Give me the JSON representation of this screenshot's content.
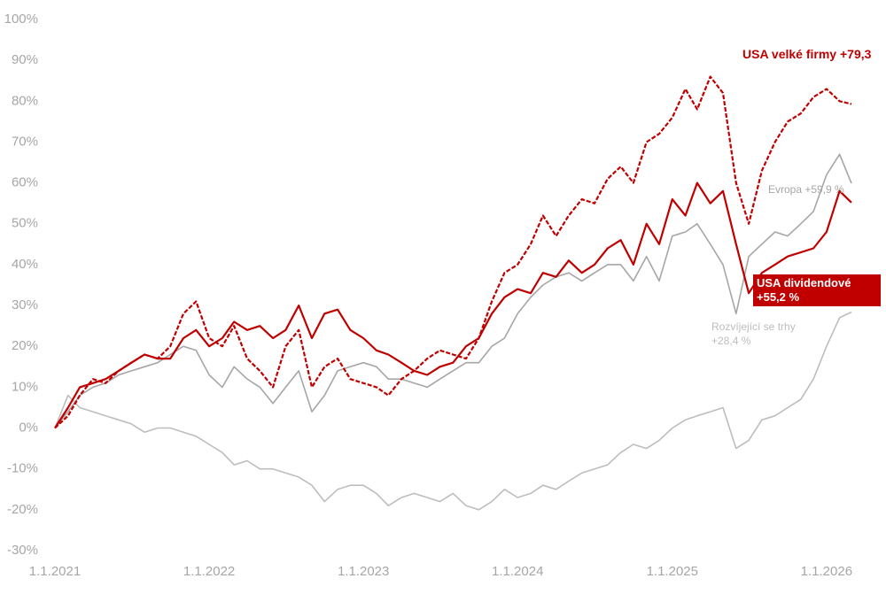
{
  "chart_data": {
    "type": "line",
    "x": [
      "2021-01-01",
      "2021-02-01",
      "2021-03-01",
      "2021-04-01",
      "2021-05-01",
      "2021-06-01",
      "2021-07-01",
      "2021-08-01",
      "2021-09-01",
      "2021-10-01",
      "2021-11-01",
      "2021-12-01",
      "2022-01-01",
      "2022-02-01",
      "2022-03-01",
      "2022-04-01",
      "2022-05-01",
      "2022-06-01",
      "2022-07-01",
      "2022-08-01",
      "2022-09-01",
      "2022-10-01",
      "2022-11-01",
      "2022-12-01",
      "2023-01-01",
      "2023-02-01",
      "2023-03-01",
      "2023-04-01",
      "2023-05-01",
      "2023-06-01",
      "2023-07-01",
      "2023-08-01",
      "2023-09-01",
      "2023-10-01",
      "2023-11-01",
      "2023-12-01",
      "2024-01-01",
      "2024-02-01",
      "2024-03-01",
      "2024-04-01",
      "2024-05-01",
      "2024-06-01",
      "2024-07-01",
      "2024-08-01",
      "2024-09-01",
      "2024-10-01",
      "2024-11-01",
      "2024-12-01",
      "2025-01-01",
      "2025-02-01",
      "2025-03-01",
      "2025-04-01",
      "2025-05-01",
      "2025-06-01",
      "2025-07-01",
      "2025-08-01",
      "2025-09-01",
      "2025-10-01",
      "2025-11-01",
      "2025-12-01",
      "2026-01-01",
      "2026-02-01",
      "2026-03-01"
    ],
    "series": [
      {
        "name": "Rozvíjející se trhy +28,4 %",
        "color": "#bdbdbd",
        "values": [
          0,
          8,
          5,
          4,
          3,
          2,
          1,
          -1,
          0,
          0,
          -1,
          -2,
          -4,
          -6,
          -9,
          -8,
          -10,
          -10,
          -11,
          -12,
          -14,
          -18,
          -15,
          -14,
          -14,
          -16,
          -19,
          -17,
          -16,
          -17,
          -18,
          -16,
          -19,
          -20,
          -18,
          -15,
          -17,
          -16,
          -14,
          -15,
          -13,
          -11,
          -10,
          -9,
          -6,
          -4,
          -5,
          -3,
          0,
          2,
          3,
          4,
          5,
          -5,
          -3,
          2,
          3,
          5,
          7,
          12,
          20,
          27,
          28.4
        ]
      },
      {
        "name": "Evropa +59,9 %",
        "color": "#a6a6a6",
        "values": [
          0,
          4,
          8,
          10,
          11,
          13,
          14,
          15,
          16,
          18,
          20,
          19,
          13,
          10,
          15,
          12,
          10,
          6,
          10,
          14,
          4,
          8,
          14,
          15,
          16,
          15,
          12,
          12,
          11,
          10,
          12,
          14,
          16,
          16,
          20,
          22,
          28,
          32,
          35,
          37,
          38,
          36,
          38,
          40,
          40,
          36,
          42,
          36,
          47,
          48,
          50,
          45,
          40,
          28,
          42,
          45,
          48,
          47,
          50,
          53,
          62,
          67,
          59.9
        ]
      },
      {
        "name": "USA dividendové +55,2 %",
        "color": "#c00000",
        "label_box": true,
        "values": [
          0,
          5,
          10,
          11,
          12,
          14,
          16,
          18,
          17,
          17,
          22,
          24,
          20,
          22,
          26,
          24,
          25,
          22,
          24,
          30,
          22,
          28,
          29,
          24,
          22,
          19,
          18,
          16,
          14,
          13,
          15,
          16,
          20,
          22,
          28,
          32,
          34,
          33,
          38,
          37,
          41,
          38,
          40,
          44,
          46,
          40,
          50,
          45,
          56,
          52,
          60,
          55,
          58,
          45,
          33,
          38,
          40,
          42,
          43,
          44,
          48,
          58,
          55.2
        ]
      },
      {
        "name": "USA velké firmy +79,3",
        "color": "#c00000",
        "dash": true,
        "values": [
          0,
          3,
          8,
          12,
          11,
          14,
          16,
          18,
          17,
          20,
          28,
          31,
          22,
          20,
          25,
          17,
          14,
          10,
          20,
          24,
          10,
          15,
          17,
          12,
          11,
          10,
          8,
          12,
          14,
          17,
          19,
          18,
          17,
          22,
          31,
          38,
          40,
          45,
          52,
          47,
          52,
          56,
          55,
          61,
          64,
          60,
          70,
          72,
          76,
          83,
          78,
          86,
          82,
          60,
          50,
          63,
          70,
          75,
          77,
          81,
          83,
          80,
          79.3
        ]
      }
    ],
    "xlim": [
      "2021-01-01",
      "2026-03-01"
    ],
    "xticks": [
      {
        "value": "2021-01-01",
        "label": "1.1.2021"
      },
      {
        "value": "2022-01-01",
        "label": "1.1.2022"
      },
      {
        "value": "2023-01-01",
        "label": "1.1.2023"
      },
      {
        "value": "2024-01-01",
        "label": "1.1.2024"
      },
      {
        "value": "2025-01-01",
        "label": "1.1.2025"
      },
      {
        "value": "2026-01-01",
        "label": "1.1.2026"
      }
    ],
    "ylim": [
      -30,
      100
    ],
    "yticks": [
      {
        "value": -30,
        "label": "-30%"
      },
      {
        "value": -20,
        "label": "-20%"
      },
      {
        "value": -10,
        "label": "-10%"
      },
      {
        "value": 0,
        "label": "0%"
      },
      {
        "value": 10,
        "label": "10%"
      },
      {
        "value": 20,
        "label": "20%"
      },
      {
        "value": 30,
        "label": "30%"
      },
      {
        "value": 40,
        "label": "40%"
      },
      {
        "value": 50,
        "label": "50%"
      },
      {
        "value": 60,
        "label": "60%"
      },
      {
        "value": 70,
        "label": "70%"
      },
      {
        "value": 80,
        "label": "80%"
      },
      {
        "value": 90,
        "label": "90%"
      },
      {
        "value": 100,
        "label": "100%"
      }
    ],
    "grid": false
  }
}
